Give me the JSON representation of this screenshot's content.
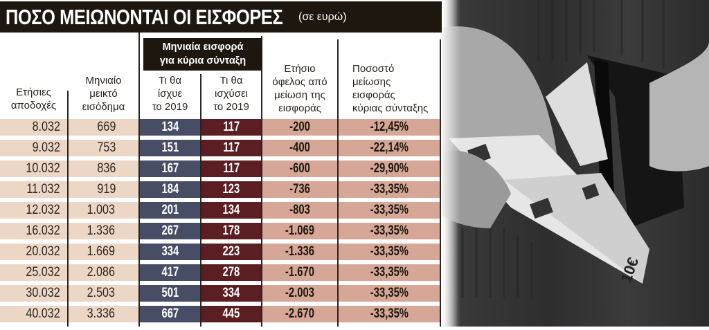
{
  "title": {
    "main": "ΠΟΣΟ ΜΕΙΩΝΟΝΤΑΙ ΟΙ ΕΙΣΦΟΡΕΣ",
    "unit": "(σε ευρώ)"
  },
  "group_header": "Μηνιαία εισφορά\nγια κύρια σύνταξη",
  "columns": [
    "Ετήσιες\nαποδοχές",
    "Μηνιαίο\nμεικτό\nεισόδημα",
    "Τι θα\nίσχυε\nτο 2019",
    "Τι θα\nισχύσει\nτο 2019",
    "Ετήσιο\nόφελος από\nμείωση της\nεισφοράς",
    "Ποσοστό\nμείωσης\nεισφοράς\nκύριας σύνταξης"
  ],
  "rows": [
    [
      "8.032",
      "669",
      "134",
      "117",
      "-200",
      "-12,45%"
    ],
    [
      "9.032",
      "753",
      "151",
      "117",
      "-400",
      "-22,14%"
    ],
    [
      "10.032",
      "836",
      "167",
      "117",
      "-600",
      "-29,90%"
    ],
    [
      "11.032",
      "919",
      "184",
      "123",
      "-736",
      "-33,35%"
    ],
    [
      "12.032",
      "1.003",
      "201",
      "134",
      "-803",
      "-33,35%"
    ],
    [
      "16.032",
      "1.336",
      "267",
      "178",
      "-1.069",
      "-33,35%"
    ],
    [
      "20.032",
      "1.669",
      "334",
      "223",
      "-1.336",
      "-33,35%"
    ],
    [
      "25.032",
      "2.086",
      "417",
      "278",
      "-1.670",
      "-33,35%"
    ],
    [
      "30.032",
      "2.503",
      "501",
      "334",
      "-2.003",
      "-33,35%"
    ],
    [
      "40.032",
      "3.336",
      "667",
      "445",
      "-2.670",
      "-33,35%"
    ]
  ],
  "colors": {
    "title_bg": "#1d1710",
    "beige": "#ecd7c6",
    "blue": "#484d66",
    "maroon": "#5b1e22",
    "salmon": "#d6a797"
  },
  "photo": {
    "description": "black-and-white photo of hands taking euro banknotes out of a wallet"
  }
}
